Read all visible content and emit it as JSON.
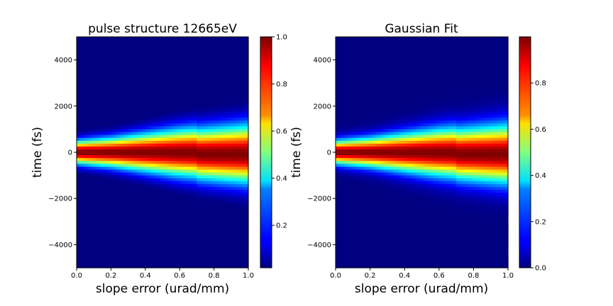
{
  "colormap": "jet",
  "chart_data": [
    {
      "type": "heatmap",
      "title": "pulse structure 12665eV",
      "xlabel": "slope error (urad/mm)",
      "ylabel": "time (fs)",
      "xlim": [
        0.0,
        1.0
      ],
      "ylim": [
        -5000,
        5000
      ],
      "x_ticks": [
        0.0,
        0.2,
        0.4,
        0.6,
        0.8,
        1.0
      ],
      "x_tick_labels": [
        "0.0",
        "0.2",
        "0.4",
        "0.6",
        "0.8",
        "1.0"
      ],
      "y_ticks": [
        4000,
        2000,
        0,
        -2000,
        -4000
      ],
      "y_tick_labels": [
        "4000",
        "2000",
        "0",
        "−2000",
        "−4000"
      ],
      "intensity_model": "gaussian in time, peak centered near 0 fs, widening with slope error",
      "peak_center_fs": {
        "x": [
          0.0,
          0.7,
          0.7,
          1.0
        ],
        "t": [
          0,
          -20,
          -80,
          -80
        ]
      },
      "fwhm_fs": {
        "x": [
          0.0,
          0.2,
          0.4,
          0.6,
          0.7,
          0.8,
          1.0
        ],
        "fwhm": [
          800,
          1000,
          1300,
          1600,
          1700,
          1800,
          2000
        ]
      },
      "colorbar": {
        "range": [
          0.02,
          1.0
        ],
        "ticks": [
          0.2,
          0.4,
          0.6,
          0.8,
          1.0
        ],
        "tick_labels": [
          "0.2",
          "0.4",
          "0.6",
          "0.8",
          "1.0"
        ]
      }
    },
    {
      "type": "heatmap",
      "title": "Gaussian Fit",
      "xlabel": "slope error (urad/mm)",
      "ylabel": "time (fs)",
      "xlim": [
        0.0,
        1.0
      ],
      "ylim": [
        -5000,
        5000
      ],
      "x_ticks": [
        0.0,
        0.2,
        0.4,
        0.6,
        0.8,
        1.0
      ],
      "x_tick_labels": [
        "0.0",
        "0.2",
        "0.4",
        "0.6",
        "0.8",
        "1.0"
      ],
      "y_ticks": [
        4000,
        2000,
        0,
        -2000,
        -4000
      ],
      "y_tick_labels": [
        "4000",
        "2000",
        "0",
        "−2000",
        "−4000"
      ],
      "intensity_model": "gaussian in time, peak centered near 0 fs, widening with slope error",
      "peak_center_fs": {
        "x": [
          0.0,
          0.7,
          0.7,
          1.0
        ],
        "t": [
          0,
          -20,
          -80,
          -80
        ]
      },
      "fwhm_fs": {
        "x": [
          0.0,
          0.2,
          0.4,
          0.6,
          0.7,
          0.8,
          1.0
        ],
        "fwhm": [
          800,
          1000,
          1300,
          1600,
          1700,
          1800,
          2000
        ]
      },
      "colorbar": {
        "range": [
          0.0,
          1.0
        ],
        "ticks": [
          0.0,
          0.2,
          0.4,
          0.6,
          0.8
        ],
        "tick_labels": [
          "0.0",
          "0.2",
          "0.4",
          "0.6",
          "0.8"
        ]
      }
    }
  ]
}
